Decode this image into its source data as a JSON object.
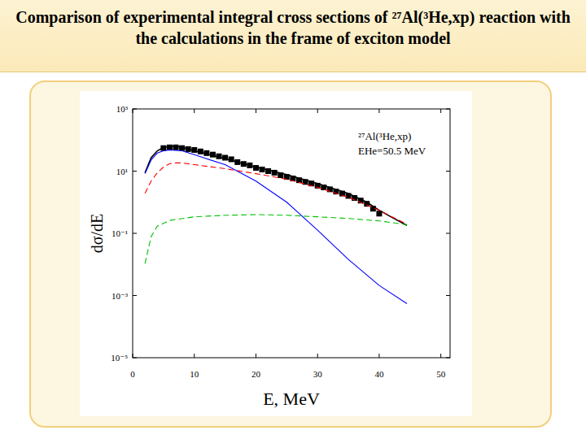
{
  "chart_data": {
    "type": "line",
    "title": "Comparison of experimental integral cross sections of ²⁷Al(³He,xp) reaction with the calculations in the frame of exciton model",
    "xlabel": "E, MeV",
    "ylabel": "dσ/dE",
    "annotations": [
      "²⁷Al(³He,xp)",
      "EHe=50.5 MeV"
    ],
    "log": "y",
    "grid": false,
    "xlim": [
      0,
      51.5
    ],
    "xticks": [
      0,
      10,
      20,
      30,
      40,
      50
    ],
    "ylim": [
      1e-05,
      1000
    ],
    "yticks": [
      {
        "value": 1e-05,
        "label": "10⁻⁵"
      },
      {
        "value": 0.001,
        "label": "10⁻³"
      },
      {
        "value": 0.1,
        "label": "10⁻¹"
      },
      {
        "value": 10,
        "label": "10¹"
      },
      {
        "value": 1000,
        "label": "10³"
      }
    ],
    "series": [
      {
        "type": "scatter",
        "color": "#000000",
        "marker": "square",
        "x": [
          5,
          6,
          7,
          8,
          9,
          10,
          11,
          12,
          13,
          14,
          15,
          16,
          17,
          18,
          19,
          20,
          21,
          22,
          23,
          24,
          25,
          26,
          27,
          28,
          29,
          30,
          31,
          32,
          33,
          34,
          35,
          36,
          37,
          38,
          39,
          40
        ],
        "values": [
          55,
          58,
          58,
          55,
          51,
          48,
          43,
          38,
          34,
          30,
          27,
          24,
          19.5,
          17,
          15.3,
          12.7,
          11.3,
          10,
          8.9,
          7.4,
          6.5,
          5.8,
          5.1,
          4.5,
          4.0,
          3.4,
          3.0,
          2.6,
          2.2,
          1.9,
          1.6,
          1.37,
          1.13,
          0.89,
          0.62,
          0.43
        ]
      },
      {
        "type": "line",
        "color": "#000000",
        "line_style": "solid",
        "x": [
          2,
          3,
          4,
          5,
          6,
          7,
          8,
          10,
          12,
          15,
          20,
          25,
          30,
          35,
          38,
          40,
          42,
          44.5
        ],
        "values": [
          8.9,
          27,
          45,
          58,
          62,
          62,
          58,
          45,
          36,
          25,
          13.5,
          7.7,
          4.0,
          1.9,
          1.0,
          0.55,
          0.33,
          0.18
        ]
      },
      {
        "type": "line",
        "color": "#0000ff",
        "line_style": "solid",
        "x": [
          2,
          3,
          4,
          5,
          6,
          8,
          10,
          12,
          15,
          20,
          25,
          30,
          35,
          40,
          44.5
        ],
        "values": [
          8.3,
          23,
          38,
          45,
          48,
          45,
          34,
          25,
          16.2,
          4.8,
          1.0,
          0.127,
          0.0144,
          0.0021,
          0.00055
        ]
      },
      {
        "type": "line",
        "color": "#ff0000",
        "line_style": "dashed",
        "x": [
          2,
          3,
          4,
          5,
          6,
          7,
          8,
          10,
          15,
          20,
          25,
          30,
          35,
          40,
          44.5
        ],
        "values": [
          1.95,
          4.8,
          8.9,
          13.5,
          17.4,
          18.4,
          18.4,
          16.2,
          12.0,
          8.3,
          5.5,
          3.0,
          1.44,
          0.55,
          0.195
        ]
      },
      {
        "type": "line",
        "color": "#00c000",
        "line_style": "dashed",
        "x": [
          2,
          3,
          4,
          6,
          10,
          15,
          20,
          25,
          30,
          35,
          40,
          44.5
        ],
        "values": [
          0.0106,
          0.079,
          0.17,
          0.26,
          0.34,
          0.38,
          0.4,
          0.38,
          0.34,
          0.3,
          0.25,
          0.19
        ]
      }
    ]
  }
}
